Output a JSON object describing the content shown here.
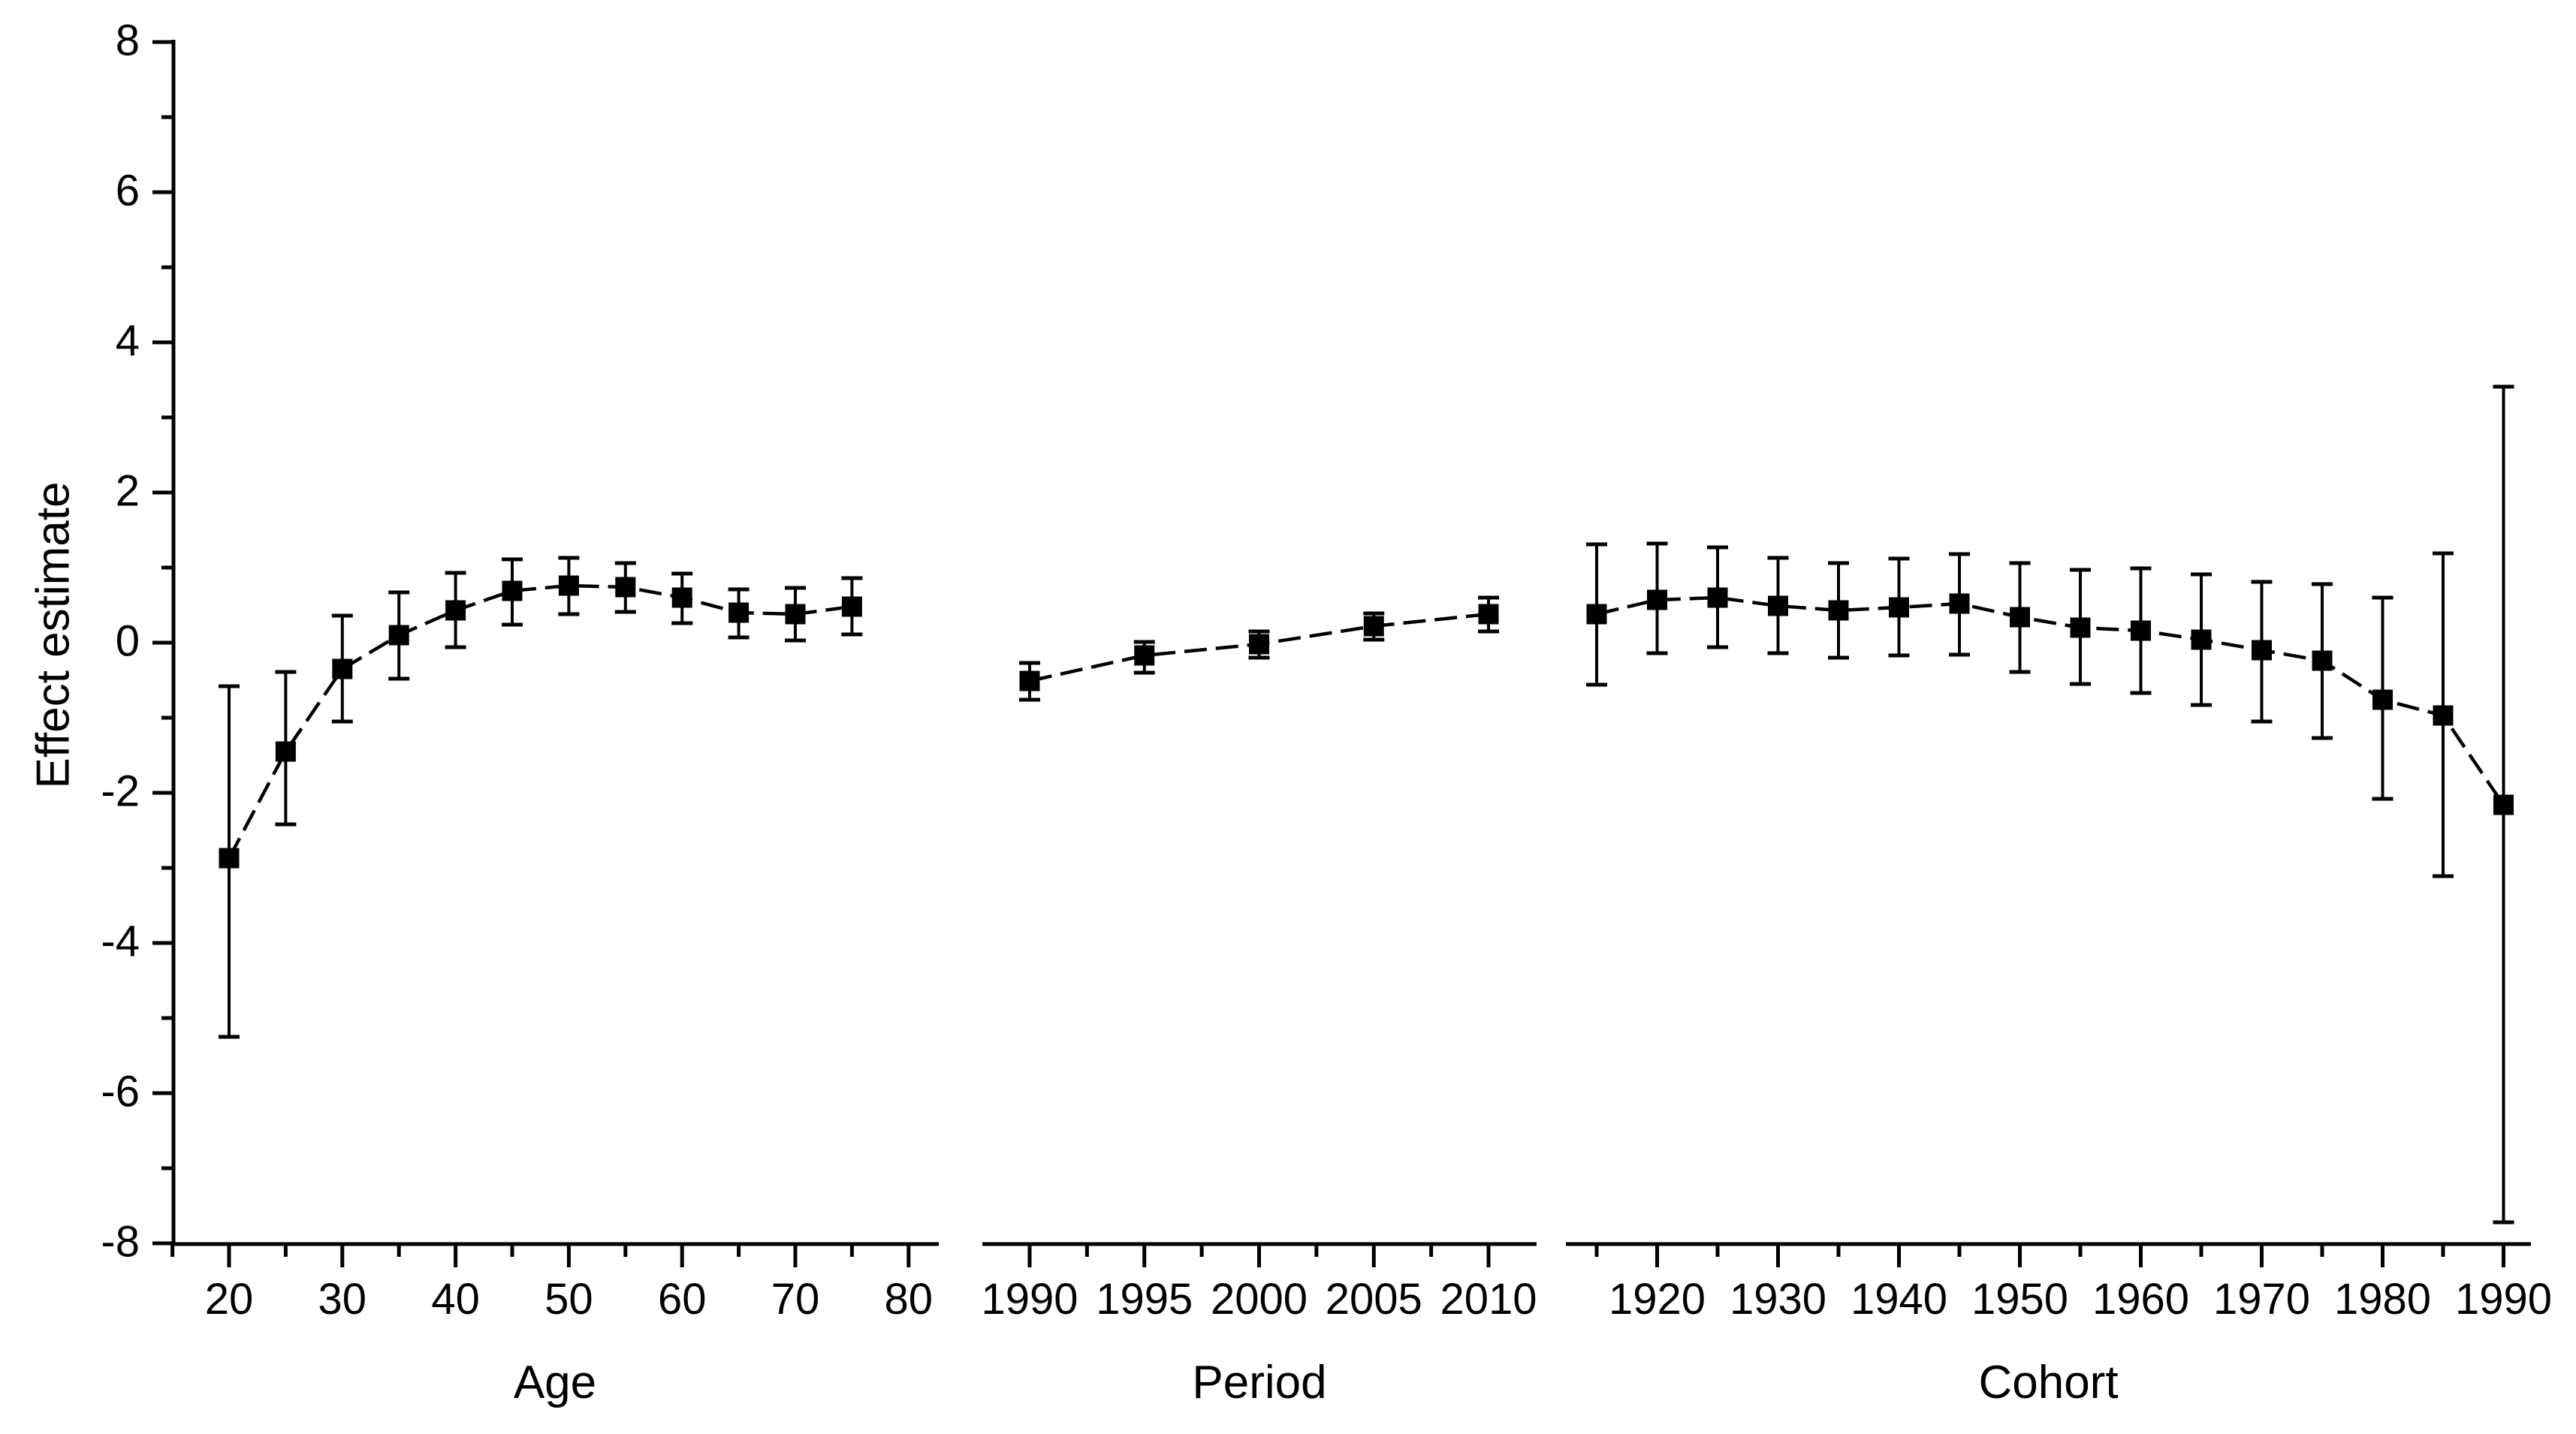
{
  "figure": {
    "title": "",
    "ylabel": "Effect estimate",
    "background_color": "#ffffff",
    "line_color": "#000000",
    "marker_color": "#000000",
    "y_axis": {
      "ylim": [
        -8,
        8
      ],
      "major_ticks": [
        8,
        6,
        4,
        2,
        0,
        -2,
        -4,
        -6,
        -8
      ],
      "minor_ticks": [
        7,
        5,
        3,
        1,
        -1,
        -3,
        -5,
        -7
      ]
    }
  },
  "chart_data": [
    {
      "type": "line",
      "panel": "Age",
      "xlabel": "Age",
      "marker": "filled-square",
      "error_bars": true,
      "grid": false,
      "legend": "none",
      "x_major_ticks": [
        20,
        30,
        40,
        50,
        60,
        70,
        80
      ],
      "x_minor_ticks": [
        15,
        25,
        35,
        45,
        55,
        65,
        75
      ],
      "x": [
        20,
        25,
        30,
        35,
        40,
        45,
        50,
        55,
        60,
        65,
        70,
        75
      ],
      "values": [
        -2.87,
        -1.45,
        -0.35,
        0.1,
        0.43,
        0.69,
        0.76,
        0.74,
        0.6,
        0.4,
        0.38,
        0.48
      ],
      "ci_low": [
        -5.25,
        -2.42,
        -1.05,
        -0.48,
        -0.06,
        0.24,
        0.38,
        0.41,
        0.26,
        0.07,
        0.03,
        0.11
      ],
      "ci_high": [
        -0.58,
        -0.39,
        0.36,
        0.67,
        0.93,
        1.11,
        1.13,
        1.06,
        0.92,
        0.71,
        0.73,
        0.86
      ]
    },
    {
      "type": "line",
      "panel": "Period",
      "xlabel": "Period",
      "marker": "filled-square",
      "error_bars": true,
      "grid": false,
      "legend": "none",
      "x_major_ticks": [
        1990,
        1995,
        2000,
        2005,
        2010
      ],
      "x_minor_ticks": [
        1992.5,
        1997.5,
        2002.5,
        2007.5
      ],
      "x": [
        1990,
        1995,
        2000,
        2005,
        2010
      ],
      "values": [
        -0.51,
        -0.17,
        -0.02,
        0.22,
        0.38
      ],
      "ci_low": [
        -0.76,
        -0.4,
        -0.2,
        0.04,
        0.15
      ],
      "ci_high": [
        -0.27,
        0.01,
        0.15,
        0.39,
        0.6
      ]
    },
    {
      "type": "line",
      "panel": "Cohort",
      "xlabel": "Cohort",
      "marker": "filled-square",
      "error_bars": true,
      "grid": false,
      "legend": "none",
      "x_major_ticks": [
        1920,
        1930,
        1940,
        1950,
        1960,
        1970,
        1980,
        1990
      ],
      "x_minor_ticks": [
        1915,
        1925,
        1935,
        1945,
        1955,
        1965,
        1975,
        1985
      ],
      "x": [
        1915,
        1920,
        1925,
        1930,
        1935,
        1940,
        1945,
        1950,
        1955,
        1960,
        1965,
        1970,
        1975,
        1980,
        1985,
        1990
      ],
      "values": [
        0.38,
        0.57,
        0.6,
        0.49,
        0.43,
        0.47,
        0.52,
        0.34,
        0.2,
        0.16,
        0.04,
        -0.1,
        -0.24,
        -0.76,
        -0.97,
        -2.16
      ],
      "ci_low": [
        -0.56,
        -0.14,
        -0.06,
        -0.14,
        -0.2,
        -0.17,
        -0.16,
        -0.39,
        -0.55,
        -0.67,
        -0.83,
        -1.05,
        -1.27,
        -2.08,
        -3.11,
        -7.72
      ],
      "ci_high": [
        1.31,
        1.32,
        1.27,
        1.13,
        1.06,
        1.12,
        1.18,
        1.06,
        0.97,
        0.99,
        0.91,
        0.81,
        0.78,
        0.6,
        1.19,
        3.41
      ]
    }
  ]
}
